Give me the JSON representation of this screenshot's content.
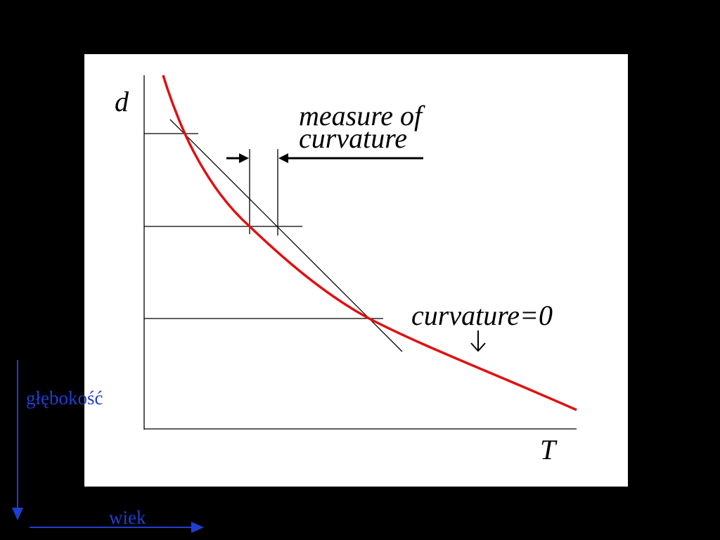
{
  "diagram": {
    "y_axis_label": "d",
    "x_axis_label": "T",
    "annotation_measure": [
      "measure of",
      "curvature"
    ],
    "annotation_zero": "curvature=0"
  },
  "slide": {
    "depth_label": "głębokość",
    "age_label": "wiek"
  }
}
